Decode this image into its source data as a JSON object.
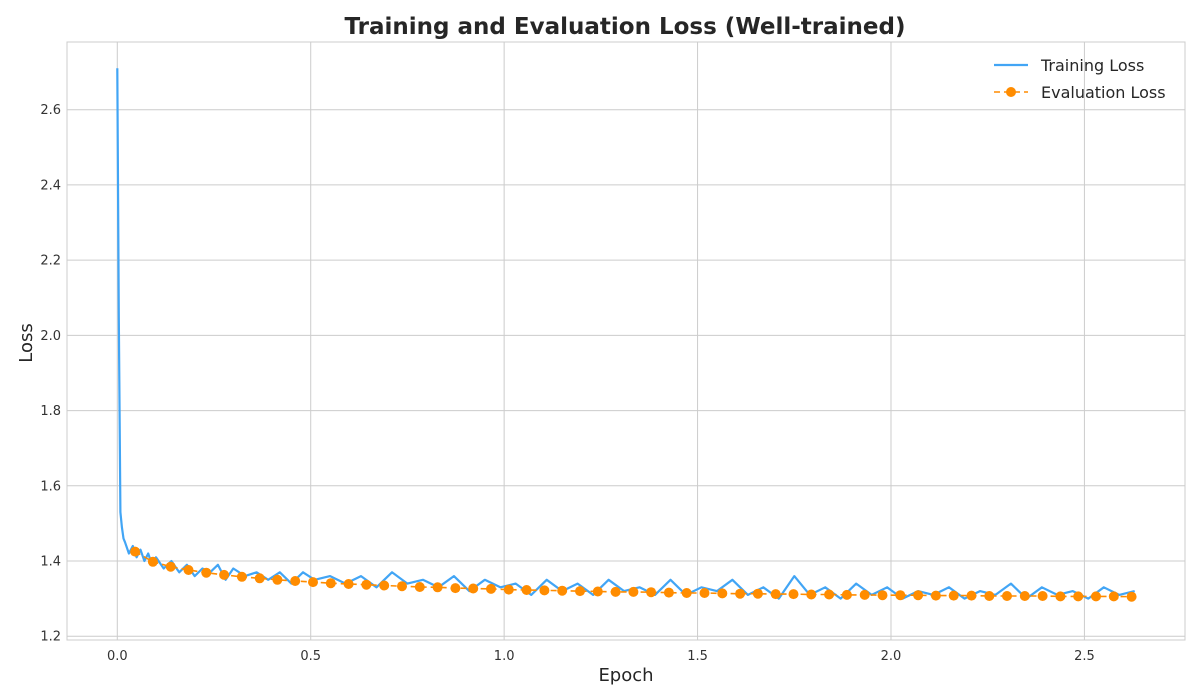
{
  "chart_data": {
    "type": "line",
    "title": "Training and Evaluation Loss (Well-trained)",
    "xlabel": "Epoch",
    "ylabel": "Loss",
    "xlim": [
      -0.13,
      2.76
    ],
    "ylim": [
      1.19,
      2.78
    ],
    "xticks": [
      0.0,
      0.5,
      1.0,
      1.5,
      2.0,
      2.5
    ],
    "xtick_labels": [
      "0.0",
      "0.5",
      "1.0",
      "1.5",
      "2.0",
      "2.5"
    ],
    "yticks": [
      1.2,
      1.4,
      1.6,
      1.8,
      2.0,
      2.2,
      2.4,
      2.6
    ],
    "ytick_labels": [
      "1.2",
      "1.4",
      "1.6",
      "1.8",
      "2.0",
      "2.2",
      "2.4",
      "2.6"
    ],
    "grid": true,
    "legend_position": "top-right",
    "series": [
      {
        "name": "Training Loss",
        "color": "#42a5f5",
        "style": "solid",
        "x": [
          0.0,
          0.004,
          0.008,
          0.012,
          0.016,
          0.02,
          0.03,
          0.04,
          0.05,
          0.06,
          0.07,
          0.08,
          0.09,
          0.1,
          0.12,
          0.14,
          0.16,
          0.18,
          0.2,
          0.22,
          0.24,
          0.26,
          0.28,
          0.3,
          0.33,
          0.36,
          0.39,
          0.42,
          0.45,
          0.48,
          0.51,
          0.55,
          0.59,
          0.63,
          0.67,
          0.71,
          0.75,
          0.79,
          0.83,
          0.87,
          0.91,
          0.95,
          0.99,
          1.03,
          1.07,
          1.11,
          1.15,
          1.19,
          1.23,
          1.27,
          1.31,
          1.35,
          1.39,
          1.43,
          1.47,
          1.51,
          1.55,
          1.59,
          1.63,
          1.67,
          1.71,
          1.75,
          1.79,
          1.83,
          1.87,
          1.91,
          1.95,
          1.99,
          2.03,
          2.07,
          2.11,
          2.15,
          2.19,
          2.23,
          2.27,
          2.31,
          2.35,
          2.39,
          2.43,
          2.47,
          2.51,
          2.55,
          2.59,
          2.63
        ],
        "values": [
          2.71,
          2.05,
          1.53,
          1.49,
          1.46,
          1.45,
          1.42,
          1.44,
          1.41,
          1.43,
          1.4,
          1.42,
          1.39,
          1.41,
          1.38,
          1.4,
          1.37,
          1.39,
          1.36,
          1.38,
          1.37,
          1.39,
          1.35,
          1.38,
          1.36,
          1.37,
          1.35,
          1.37,
          1.34,
          1.37,
          1.35,
          1.36,
          1.34,
          1.36,
          1.33,
          1.37,
          1.34,
          1.35,
          1.33,
          1.36,
          1.32,
          1.35,
          1.33,
          1.34,
          1.31,
          1.35,
          1.32,
          1.34,
          1.31,
          1.35,
          1.32,
          1.33,
          1.31,
          1.35,
          1.31,
          1.33,
          1.32,
          1.35,
          1.31,
          1.33,
          1.3,
          1.36,
          1.31,
          1.33,
          1.3,
          1.34,
          1.31,
          1.33,
          1.3,
          1.32,
          1.31,
          1.33,
          1.3,
          1.32,
          1.31,
          1.34,
          1.3,
          1.33,
          1.31,
          1.32,
          1.3,
          1.33,
          1.31,
          1.32
        ]
      },
      {
        "name": "Evaluation Loss",
        "color": "#ff8c00",
        "style": "dashed-with-markers",
        "x": [
          0.046,
          0.092,
          0.138,
          0.184,
          0.23,
          0.276,
          0.322,
          0.368,
          0.414,
          0.46,
          0.506,
          0.552,
          0.598,
          0.644,
          0.69,
          0.736,
          0.782,
          0.828,
          0.874,
          0.92,
          0.966,
          1.012,
          1.058,
          1.104,
          1.15,
          1.196,
          1.242,
          1.288,
          1.334,
          1.38,
          1.426,
          1.472,
          1.518,
          1.564,
          1.61,
          1.656,
          1.702,
          1.748,
          1.794,
          1.84,
          1.886,
          1.932,
          1.978,
          2.024,
          2.07,
          2.116,
          2.162,
          2.208,
          2.254,
          2.3,
          2.346,
          2.392,
          2.438,
          2.484,
          2.53,
          2.576,
          2.622
        ],
        "values": [
          1.425,
          1.398,
          1.385,
          1.376,
          1.369,
          1.363,
          1.358,
          1.354,
          1.35,
          1.347,
          1.344,
          1.341,
          1.339,
          1.337,
          1.335,
          1.333,
          1.331,
          1.33,
          1.328,
          1.327,
          1.326,
          1.324,
          1.323,
          1.322,
          1.321,
          1.32,
          1.319,
          1.318,
          1.318,
          1.317,
          1.316,
          1.315,
          1.315,
          1.314,
          1.313,
          1.313,
          1.312,
          1.312,
          1.311,
          1.311,
          1.31,
          1.31,
          1.309,
          1.309,
          1.309,
          1.308,
          1.308,
          1.308,
          1.307,
          1.307,
          1.307,
          1.307,
          1.306,
          1.306,
          1.306,
          1.306,
          1.305
        ]
      }
    ]
  }
}
